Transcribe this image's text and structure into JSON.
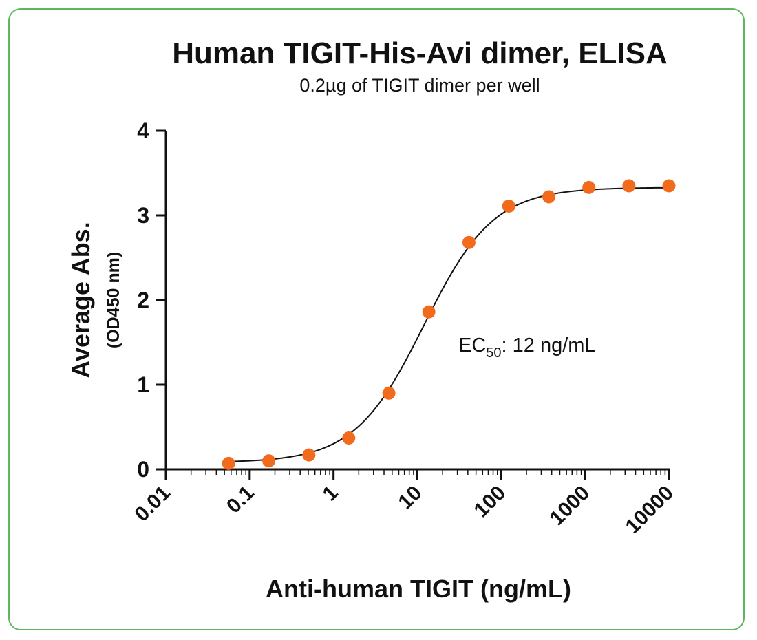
{
  "chart_data": {
    "type": "scatter",
    "title": "Human TIGIT-His-Avi dimer, ELISA",
    "subtitle": "0.2µg of TIGIT dimer per well",
    "xlabel": "Anti-human TIGIT (ng/mL)",
    "ylabel": "Average Abs.",
    "ylabel_sub": "(OD450 nm)",
    "x_scale": "log",
    "xlim": [
      0.01,
      10000
    ],
    "ylim": [
      0,
      4
    ],
    "x_ticks": [
      "0.01",
      "0.1",
      "1",
      "10",
      "100",
      "1000",
      "10000"
    ],
    "y_ticks": [
      "0",
      "1",
      "2",
      "3",
      "4"
    ],
    "grid": false,
    "marker_color": "#f26b1d",
    "annotation": {
      "prefix": "EC",
      "subscript": "50",
      "suffix": ": 12 ng/mL"
    },
    "series": [
      {
        "x": [
          0.056,
          0.169,
          0.508,
          1.52,
          4.57,
          13.7,
          41.2,
          123,
          370,
          1111,
          3333,
          10000
        ],
        "values": [
          0.07,
          0.1,
          0.17,
          0.37,
          0.9,
          1.86,
          2.68,
          3.11,
          3.22,
          3.33,
          3.35,
          3.35
        ]
      }
    ],
    "fit": {
      "model": "4PL",
      "bottom": 0.08,
      "top": 3.33,
      "ec50": 12,
      "hill": 1.05
    }
  }
}
